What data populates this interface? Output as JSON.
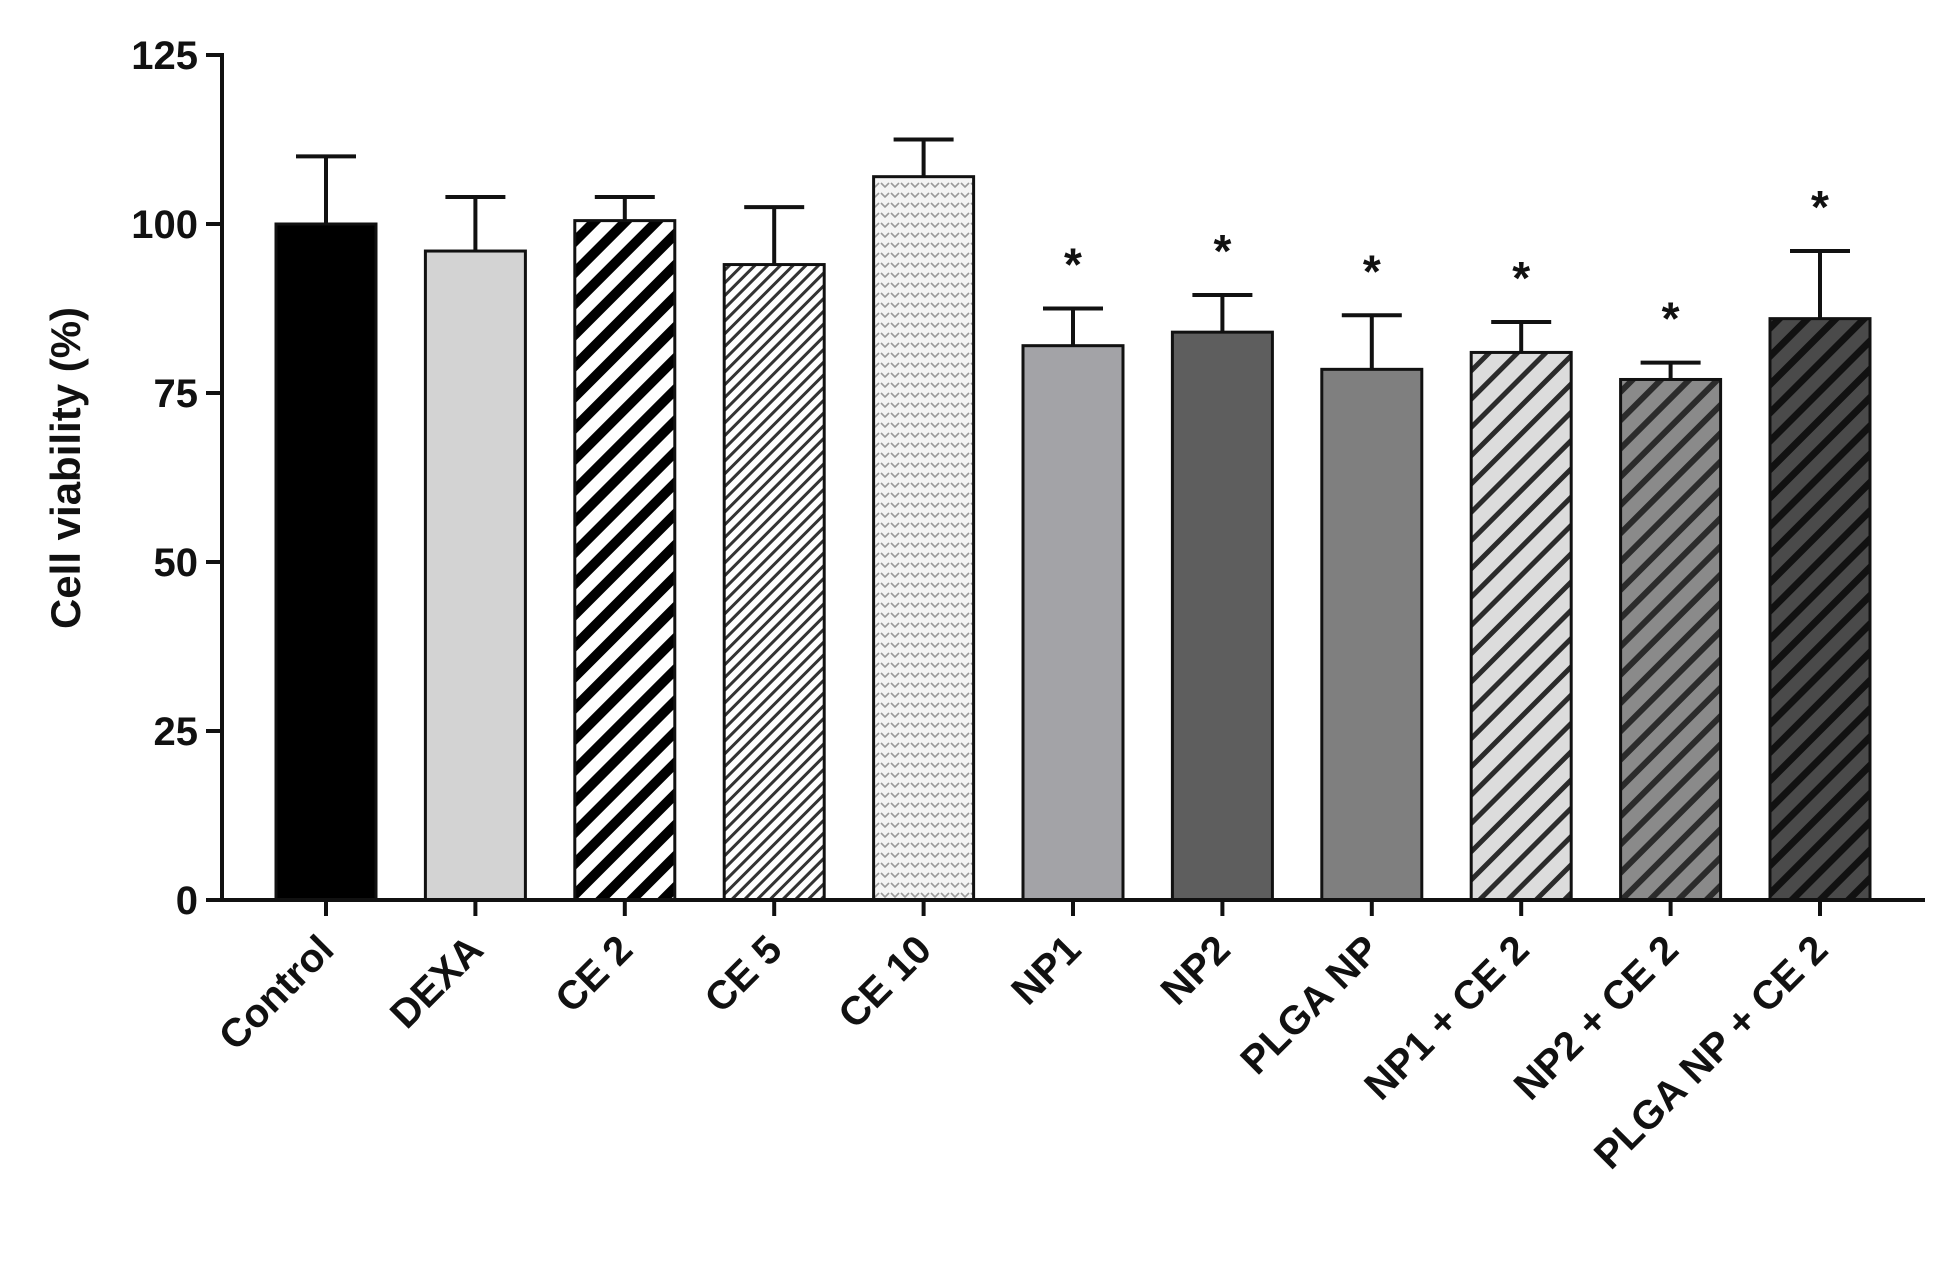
{
  "chart_data": {
    "type": "bar",
    "title": "",
    "xlabel": "",
    "ylabel": "Cell viability (%)",
    "ylim": [
      0,
      125
    ],
    "yticks": [
      0,
      25,
      50,
      75,
      100,
      125
    ],
    "grid": false,
    "legend": "none",
    "categories": [
      "Control",
      "DEXA",
      "CE 2",
      "CE 5",
      "CE 10",
      "NP1",
      "NP2",
      "PLGA NP",
      "NP1 + CE 2",
      "NP2 + CE 2",
      "PLGA NP + CE 2"
    ],
    "values": [
      100,
      96,
      100.5,
      94,
      107,
      82,
      84,
      78.5,
      81,
      77,
      86
    ],
    "errors": [
      10,
      8,
      3.5,
      8.5,
      5.5,
      5.5,
      5.5,
      8,
      4.5,
      2.5,
      10
    ],
    "significance": [
      "",
      "",
      "",
      "",
      "",
      "*",
      "*",
      "*",
      "*",
      "*",
      "*"
    ],
    "fills": [
      {
        "color": "#000000",
        "pattern": "solid"
      },
      {
        "color": "#d3d3d3",
        "pattern": "solid"
      },
      {
        "color": "#ffffff",
        "pattern": "hatch-wide"
      },
      {
        "color": "#ffffff",
        "pattern": "hatch-fine"
      },
      {
        "color": "#f4f4f4",
        "pattern": "dots"
      },
      {
        "color": "#a3a3a7",
        "pattern": "solid"
      },
      {
        "color": "#5e5e5e",
        "pattern": "solid"
      },
      {
        "color": "#7f7f7f",
        "pattern": "solid"
      },
      {
        "color": "#d5d5d5",
        "pattern": "hatch-light"
      },
      {
        "color": "#6e6e6e",
        "pattern": "hatch-mid"
      },
      {
        "color": "#2a2a2a",
        "pattern": "hatch-dark"
      }
    ]
  }
}
